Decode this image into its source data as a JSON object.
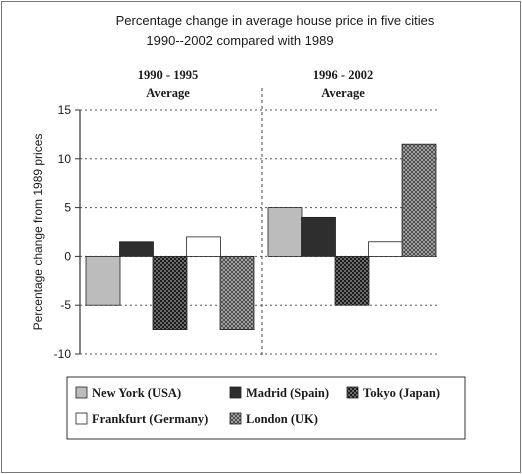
{
  "chart_data": {
    "type": "bar",
    "title": "Percentage change in average house price in five cities",
    "subtitle": "1990--2002 compared with 1989",
    "ylabel": "Percentage change from 1989 prices",
    "xlabel": "",
    "ylim": [
      -10,
      15
    ],
    "yticks": [
      "15",
      "10",
      "5",
      "0",
      "-5",
      "-10"
    ],
    "grid": true,
    "legend_position": "bottom",
    "categories": [
      {
        "line1": "1990 - 1995",
        "line2": "Average"
      },
      {
        "line1": "1996 - 2002",
        "line2": "Average"
      }
    ],
    "series": [
      {
        "name": "New York (USA)",
        "values": [
          -5,
          5
        ],
        "color": "#bcbcbc",
        "pattern": "solid-light"
      },
      {
        "name": "Madrid (Spain)",
        "values": [
          1.5,
          4
        ],
        "color": "#2e2e2e",
        "pattern": "solid-dark"
      },
      {
        "name": "Tokyo (Japan)",
        "values": [
          -7.5,
          -5
        ],
        "color": "#3a3a3a",
        "pattern": "checker"
      },
      {
        "name": "Frankfurt (Germany)",
        "values": [
          2,
          1.5
        ],
        "color": "#ffffff",
        "pattern": "white"
      },
      {
        "name": "London (UK)",
        "values": [
          -7.5,
          11.5
        ],
        "color": "#808080",
        "pattern": "crosshatch"
      }
    ]
  }
}
